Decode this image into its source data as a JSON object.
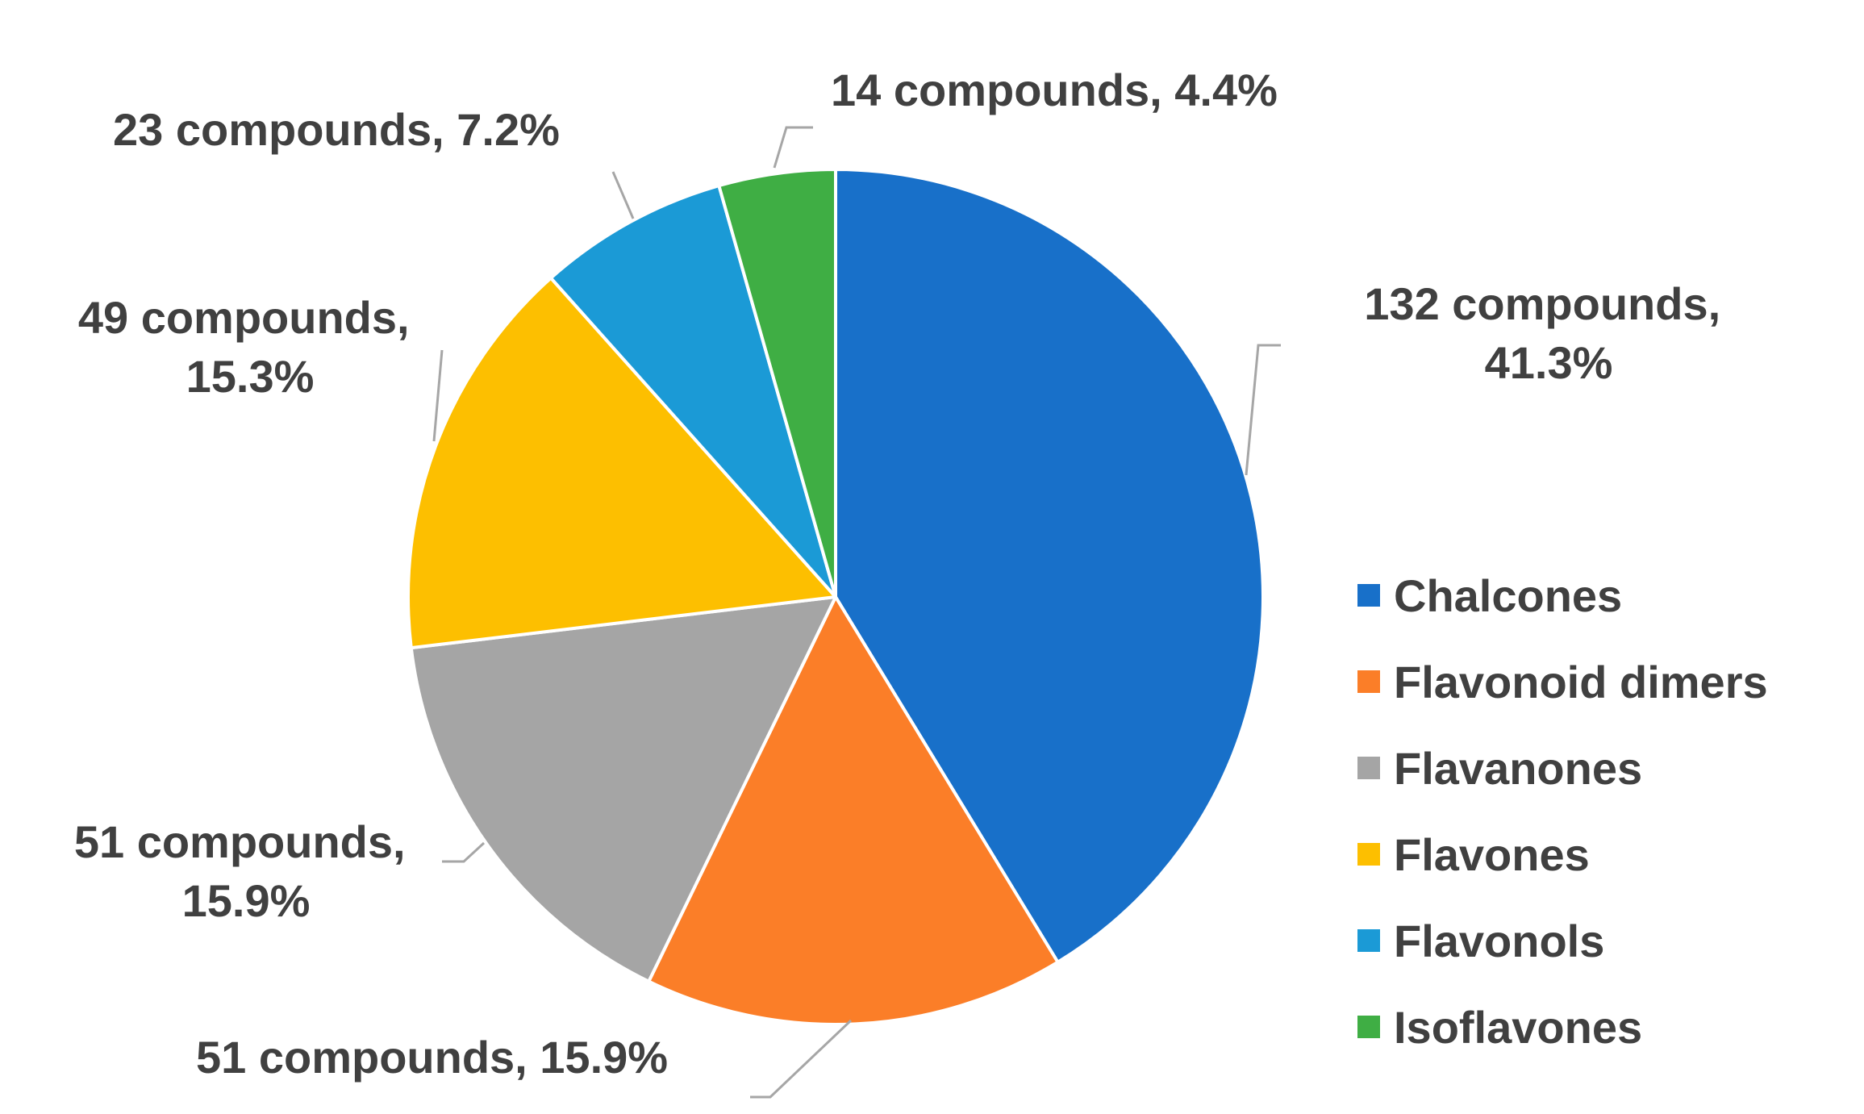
{
  "chart_data": {
    "type": "pie",
    "title": "",
    "legend_position": "right",
    "slices": [
      {
        "name": "Chalcones",
        "count": 132,
        "percent": 41.3,
        "label_line1": "132 compounds,",
        "label_line2": "41.3%",
        "color": "#1870c9"
      },
      {
        "name": "Flavonoid dimers",
        "count": 51,
        "percent": 15.9,
        "label_line1": "51 compounds, 15.9%",
        "label_line2": "",
        "color": "#fb7e28"
      },
      {
        "name": "Flavanones",
        "count": 51,
        "percent": 15.9,
        "label_line1": "51 compounds,",
        "label_line2": "15.9%",
        "color": "#a5a5a5"
      },
      {
        "name": "Flavones",
        "count": 49,
        "percent": 15.3,
        "label_line1": "49 compounds,",
        "label_line2": "15.3%",
        "color": "#fdbf00"
      },
      {
        "name": "Flavonols",
        "count": 23,
        "percent": 7.2,
        "label_line1": "23 compounds, 7.2%",
        "label_line2": "",
        "color": "#1b9ad6"
      },
      {
        "name": "Isoflavones",
        "count": 14,
        "percent": 4.4,
        "label_line1": "14 compounds, 4.4%",
        "label_line2": "",
        "color": "#3fae44"
      }
    ]
  }
}
